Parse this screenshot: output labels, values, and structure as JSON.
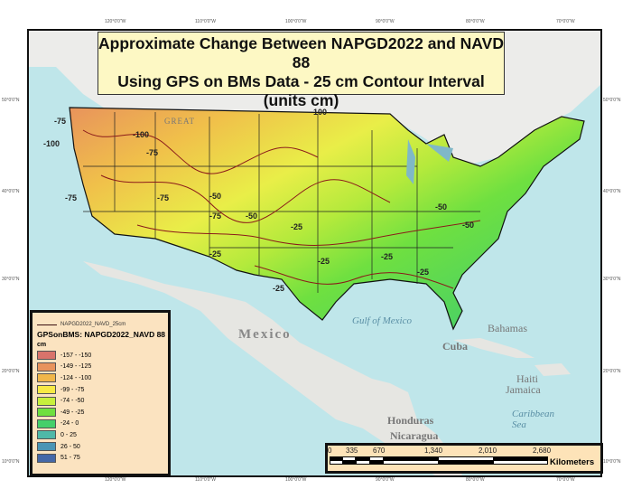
{
  "title": {
    "line1": "Approximate Change Between NAPGD2022 and NAVD 88",
    "line2": "Using GPS on BMs Data - 25 cm Contour Interval",
    "line3": "(units cm)"
  },
  "graticule": {
    "longitudes": [
      "120°0'0\"W",
      "110°0'0\"W",
      "100°0'0\"W",
      "90°0'0\"W",
      "80°0'0\"W",
      "70°0'0\"W"
    ],
    "latitudes": [
      "50°0'0\"N",
      "40°0'0\"N",
      "30°0'0\"N",
      "20°0'0\"N",
      "10°0'0\"N"
    ]
  },
  "places": {
    "mexico": "Mexico",
    "gulf": "Gulf of Mexico",
    "cuba": "Cuba",
    "bahamas": "Bahamas",
    "haiti": "Haiti",
    "jamaica": "Jamaica",
    "caribbean": "Caribbean Sea",
    "honduras": "Honduras",
    "nicaragua": "Nicaragua",
    "great": "GREAT"
  },
  "contour_labels": [
    "-75",
    "-100",
    "-100",
    "-75",
    "-100",
    "-75",
    "-75",
    "-50",
    "-50",
    "-75",
    "-50",
    "-25",
    "-25",
    "-25",
    "-50",
    "-25",
    "-25",
    "-25"
  ],
  "legend": {
    "line_label": "NAPGD2022_NAVD_25cm",
    "layer_title": "GPSonBMS: NAPGD2022_NAVD 88",
    "units": "cm",
    "classes": [
      {
        "label": "-157 - -150",
        "color": "#d9736b"
      },
      {
        "label": "-149 - -125",
        "color": "#e8935c"
      },
      {
        "label": "-124 - -100",
        "color": "#f0b64a"
      },
      {
        "label": "-99 - -75",
        "color": "#f7ea45"
      },
      {
        "label": "-74 - -50",
        "color": "#c7f03c"
      },
      {
        "label": "-49 - -25",
        "color": "#6fe040"
      },
      {
        "label": "-24 - 0",
        "color": "#45cf6a"
      },
      {
        "label": "0 - 25",
        "color": "#4fb8a8"
      },
      {
        "label": "26 - 50",
        "color": "#4a95b5"
      },
      {
        "label": "51 - 75",
        "color": "#4568a8"
      }
    ]
  },
  "scalebar": {
    "ticks": [
      "0",
      "335",
      "670",
      "1,340",
      "2,010",
      "2,680"
    ],
    "units": "Kilometers"
  },
  "colors": {
    "ocean": "#bfe6ea",
    "land": "#e8e8e6",
    "contour": "#8b1a1a"
  }
}
